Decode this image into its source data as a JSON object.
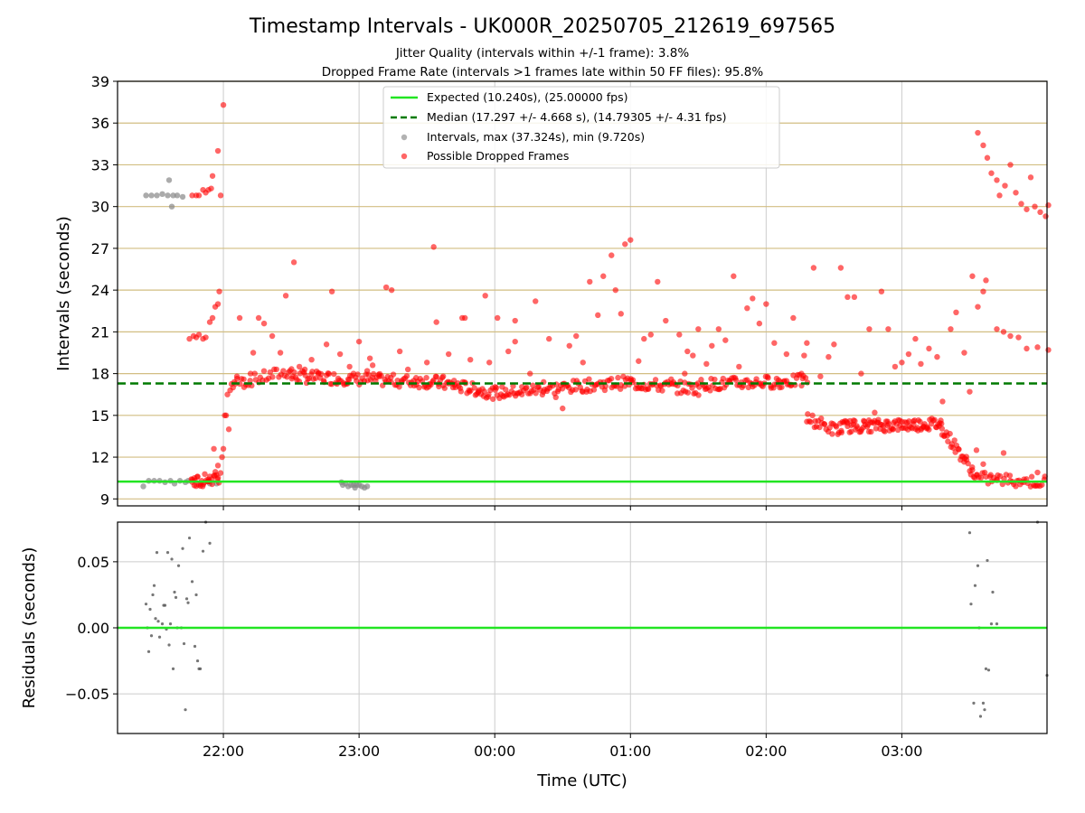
{
  "chart_data": {
    "title": "Timestamp Intervals - UK000R_20250705_212619_697565",
    "subtitle_lines": [
      "Jitter Quality (intervals within +/-1 frame): 3.8%",
      "Dropped Frame Rate (intervals >1 frames late within 50 FF files): 95.8%"
    ],
    "xlabel": "Time (UTC)",
    "x_ticks": [
      "22:00",
      "23:00",
      "00:00",
      "01:00",
      "02:00",
      "03:00"
    ],
    "colors": {
      "expected": "#22e522",
      "median": "#007a00",
      "normal": "#888888",
      "dropped": "#ff0000",
      "grid_h": "#d2be82",
      "grid_v": "#cccccc"
    },
    "top": {
      "type": "scatter",
      "ylabel": "Intervals (seconds)",
      "ylim": [
        8.5,
        39
      ],
      "y_ticks": [
        "9",
        "12",
        "15",
        "18",
        "21",
        "24",
        "27",
        "30",
        "33",
        "36",
        "39"
      ],
      "expected": 10.24,
      "median": 17.297,
      "legend": [
        "Expected (10.240s), (25.00000 fps)",
        "Median (17.297 +/- 4.668 s), (14.79305 +/- 4.31 fps)",
        "Intervals, max (37.324s), min (9.720s)",
        "Possible Dropped Frames"
      ],
      "series": {
        "normal_points": [
          [
            21.41,
            9.9
          ],
          [
            21.43,
            30.8
          ],
          [
            21.45,
            10.3
          ],
          [
            21.47,
            30.8
          ],
          [
            21.49,
            10.3
          ],
          [
            21.51,
            30.8
          ],
          [
            21.53,
            10.3
          ],
          [
            21.55,
            30.9
          ],
          [
            21.57,
            10.2
          ],
          [
            21.59,
            30.8
          ],
          [
            21.6,
            31.9
          ],
          [
            21.61,
            10.3
          ],
          [
            21.62,
            30.0
          ],
          [
            21.63,
            30.8
          ],
          [
            21.64,
            10.1
          ],
          [
            21.66,
            30.8
          ],
          [
            21.68,
            10.3
          ],
          [
            21.7,
            30.7
          ],
          [
            21.72,
            10.2
          ],
          [
            21.74,
            10.3
          ],
          [
            21.9,
            10.1
          ],
          [
            21.95,
            10.1
          ],
          [
            22.87,
            10.2
          ],
          [
            22.88,
            10.0
          ],
          [
            22.9,
            10.1
          ],
          [
            22.92,
            9.9
          ],
          [
            22.94,
            10.0
          ],
          [
            22.96,
            10.0
          ],
          [
            22.97,
            9.8
          ],
          [
            22.98,
            10.0
          ],
          [
            23.0,
            10.0
          ],
          [
            23.02,
            9.9
          ],
          [
            23.04,
            9.8
          ],
          [
            23.06,
            9.9
          ]
        ],
        "dropped_points": [
          [
            21.77,
            30.8
          ],
          [
            21.8,
            30.8
          ],
          [
            21.82,
            30.8
          ],
          [
            21.85,
            31.2
          ],
          [
            21.87,
            31.0
          ],
          [
            21.89,
            31.2
          ],
          [
            21.91,
            31.3
          ],
          [
            21.92,
            32.2
          ],
          [
            21.96,
            34.0
          ],
          [
            21.98,
            30.8
          ],
          [
            22.0,
            37.3
          ],
          [
            21.75,
            20.5
          ],
          [
            21.8,
            20.6
          ],
          [
            21.85,
            20.5
          ],
          [
            21.9,
            21.7
          ],
          [
            21.92,
            22.0
          ],
          [
            21.94,
            22.8
          ],
          [
            21.96,
            23.0
          ],
          [
            21.97,
            23.9
          ],
          [
            21.79,
            10.3
          ],
          [
            21.84,
            10.3
          ],
          [
            21.89,
            10.4
          ],
          [
            21.93,
            12.6
          ],
          [
            21.96,
            11.4
          ],
          [
            21.99,
            12.0
          ],
          [
            22.0,
            12.6
          ],
          [
            22.02,
            15.0
          ],
          [
            22.05,
            16.8
          ],
          [
            22.08,
            17.4
          ],
          [
            22.1,
            17.8
          ],
          [
            22.12,
            22.0
          ],
          [
            22.15,
            17.6
          ],
          [
            22.2,
            18.0
          ],
          [
            22.22,
            19.5
          ],
          [
            22.26,
            22.0
          ],
          [
            22.3,
            21.6
          ],
          [
            22.36,
            20.7
          ],
          [
            22.42,
            19.5
          ],
          [
            22.46,
            23.6
          ],
          [
            22.49,
            18.2
          ],
          [
            22.52,
            26.0
          ],
          [
            22.56,
            18.5
          ],
          [
            22.6,
            18.3
          ],
          [
            22.65,
            19.0
          ],
          [
            22.7,
            18.0
          ],
          [
            22.76,
            20.1
          ],
          [
            22.8,
            23.9
          ],
          [
            22.86,
            19.4
          ],
          [
            22.92,
            17.6
          ],
          [
            23.0,
            20.3
          ],
          [
            23.06,
            18.2
          ],
          [
            23.1,
            18.6
          ],
          [
            23.15,
            17.8
          ],
          [
            23.2,
            24.2
          ],
          [
            23.24,
            24.0
          ],
          [
            23.3,
            19.6
          ],
          [
            23.36,
            18.3
          ],
          [
            23.42,
            17.7
          ],
          [
            23.5,
            18.8
          ],
          [
            23.55,
            27.1
          ],
          [
            23.57,
            21.7
          ],
          [
            23.62,
            17.8
          ],
          [
            23.66,
            19.4
          ],
          [
            23.7,
            17.5
          ],
          [
            23.76,
            22.0
          ],
          [
            23.82,
            19.0
          ],
          [
            23.88,
            16.7
          ],
          [
            23.93,
            23.6
          ],
          [
            23.96,
            18.8
          ],
          [
            24.02,
            22.0
          ],
          [
            24.06,
            16.4
          ],
          [
            24.1,
            19.6
          ],
          [
            24.15,
            21.8
          ],
          [
            24.2,
            16.5
          ],
          [
            24.26,
            18.0
          ],
          [
            24.3,
            23.2
          ],
          [
            24.36,
            17.4
          ],
          [
            24.4,
            20.5
          ],
          [
            24.45,
            16.3
          ],
          [
            24.5,
            15.5
          ],
          [
            24.55,
            20.0
          ],
          [
            24.6,
            20.7
          ],
          [
            24.65,
            18.8
          ],
          [
            24.7,
            24.6
          ],
          [
            24.76,
            22.2
          ],
          [
            24.8,
            25.0
          ],
          [
            24.86,
            26.5
          ],
          [
            24.89,
            24.0
          ],
          [
            24.93,
            22.3
          ],
          [
            24.96,
            27.3
          ],
          [
            25.0,
            27.6
          ],
          [
            25.06,
            18.9
          ],
          [
            25.1,
            20.5
          ],
          [
            25.15,
            20.8
          ],
          [
            25.2,
            24.6
          ],
          [
            25.26,
            21.8
          ],
          [
            25.3,
            17.6
          ],
          [
            25.36,
            20.8
          ],
          [
            25.4,
            18.0
          ],
          [
            25.46,
            19.3
          ],
          [
            25.5,
            21.2
          ],
          [
            25.56,
            18.7
          ],
          [
            25.6,
            20.0
          ],
          [
            25.65,
            21.2
          ],
          [
            25.7,
            20.4
          ],
          [
            25.76,
            25.0
          ],
          [
            25.8,
            18.5
          ],
          [
            25.86,
            22.7
          ],
          [
            25.9,
            23.4
          ],
          [
            25.95,
            21.6
          ],
          [
            26.0,
            23.0
          ],
          [
            26.06,
            20.2
          ],
          [
            26.1,
            17.0
          ],
          [
            26.15,
            19.4
          ],
          [
            26.2,
            22.0
          ],
          [
            26.26,
            18.0
          ],
          [
            26.3,
            20.2
          ],
          [
            26.35,
            25.6
          ],
          [
            26.4,
            17.8
          ],
          [
            26.46,
            19.2
          ],
          [
            26.5,
            20.1
          ],
          [
            26.55,
            25.6
          ],
          [
            26.6,
            23.5
          ],
          [
            26.65,
            23.5
          ],
          [
            26.7,
            18.0
          ],
          [
            26.76,
            21.2
          ],
          [
            26.8,
            15.2
          ],
          [
            26.85,
            23.9
          ],
          [
            26.9,
            21.2
          ],
          [
            26.95,
            18.5
          ],
          [
            27.0,
            18.8
          ],
          [
            27.05,
            19.4
          ],
          [
            27.1,
            20.5
          ],
          [
            27.14,
            18.7
          ],
          [
            27.2,
            19.8
          ],
          [
            27.26,
            19.2
          ],
          [
            27.3,
            16.0
          ],
          [
            27.36,
            21.2
          ],
          [
            27.4,
            22.4
          ],
          [
            27.46,
            19.5
          ],
          [
            27.5,
            16.7
          ],
          [
            27.52,
            25.0
          ],
          [
            27.56,
            22.8
          ],
          [
            27.6,
            23.9
          ],
          [
            27.62,
            24.7
          ],
          [
            27.56,
            35.3
          ],
          [
            27.6,
            34.4
          ],
          [
            27.63,
            33.5
          ],
          [
            27.66,
            32.4
          ],
          [
            27.7,
            31.9
          ],
          [
            27.72,
            30.8
          ],
          [
            27.76,
            31.5
          ],
          [
            27.8,
            33.0
          ],
          [
            27.84,
            31.0
          ],
          [
            27.88,
            30.2
          ],
          [
            27.92,
            29.8
          ],
          [
            27.95,
            32.1
          ],
          [
            27.98,
            30.0
          ],
          [
            28.02,
            29.6
          ],
          [
            28.06,
            29.3
          ],
          [
            28.08,
            30.1
          ],
          [
            27.7,
            21.2
          ],
          [
            27.75,
            21.0
          ],
          [
            27.8,
            20.7
          ],
          [
            27.86,
            20.6
          ],
          [
            27.92,
            19.8
          ],
          [
            28.0,
            19.9
          ],
          [
            28.08,
            19.7
          ],
          [
            27.55,
            12.5
          ],
          [
            27.6,
            11.5
          ],
          [
            27.65,
            10.6
          ],
          [
            27.7,
            10.4
          ],
          [
            27.75,
            12.3
          ],
          [
            27.8,
            10.3
          ],
          [
            27.85,
            10.3
          ],
          [
            27.9,
            10.2
          ],
          [
            27.97,
            10.0
          ],
          [
            28.0,
            10.9
          ],
          [
            28.05,
            10.4
          ],
          [
            21.78,
            20.7
          ],
          [
            21.82,
            20.8
          ],
          [
            21.87,
            20.6
          ],
          [
            22.03,
            16.5
          ],
          [
            22.04,
            14.0
          ],
          [
            22.01,
            15.0
          ],
          [
            23.08,
            19.1
          ],
          [
            22.93,
            18.5
          ],
          [
            23.78,
            22.0
          ],
          [
            24.15,
            20.3
          ],
          [
            25.42,
            19.6
          ],
          [
            26.28,
            19.3
          ]
        ],
        "bands": [
          {
            "x0": 22.06,
            "x1": 22.5,
            "y0": 17.2,
            "y1": 18.2,
            "n": 30
          },
          {
            "x0": 22.5,
            "x1": 23.5,
            "y0": 17.8,
            "y1": 17.4,
            "n": 90
          },
          {
            "x0": 23.5,
            "x1": 24.0,
            "y0": 17.5,
            "y1": 16.6,
            "n": 50
          },
          {
            "x0": 24.0,
            "x1": 25.0,
            "y0": 16.6,
            "y1": 17.4,
            "n": 90
          },
          {
            "x0": 25.0,
            "x1": 25.5,
            "y0": 17.3,
            "y1": 16.9,
            "n": 45
          },
          {
            "x0": 25.5,
            "x1": 26.3,
            "y0": 17.2,
            "y1": 17.5,
            "n": 75
          },
          {
            "x0": 26.3,
            "x1": 26.55,
            "y0": 14.8,
            "y1": 13.8,
            "n": 25
          },
          {
            "x0": 26.55,
            "x1": 27.3,
            "y0": 14.2,
            "y1": 14.4,
            "n": 100
          },
          {
            "x0": 27.3,
            "x1": 27.55,
            "y0": 14.0,
            "y1": 10.6,
            "n": 30
          },
          {
            "x0": 27.55,
            "x1": 28.05,
            "y0": 10.5,
            "y1": 10.2,
            "n": 35
          },
          {
            "x0": 21.76,
            "x1": 21.98,
            "y0": 10.2,
            "y1": 10.6,
            "n": 30
          }
        ]
      }
    },
    "bottom": {
      "type": "scatter",
      "ylabel": "Residuals (seconds)",
      "ylim": [
        -0.08,
        0.08
      ],
      "y_ticks": [
        "−0.05",
        "0.00",
        "0.05"
      ],
      "y_tick_values": [
        -0.05,
        0.0,
        0.05
      ],
      "points": [
        [
          21.43,
          0.018
        ],
        [
          21.44,
          0.0
        ],
        [
          21.45,
          -0.018
        ],
        [
          21.46,
          0.014
        ],
        [
          21.47,
          -0.006
        ],
        [
          21.48,
          0.025
        ],
        [
          21.49,
          0.032
        ],
        [
          21.5,
          0.007
        ],
        [
          21.51,
          0.057
        ],
        [
          21.52,
          0.005
        ],
        [
          21.53,
          -0.007
        ],
        [
          21.55,
          0.003
        ],
        [
          21.56,
          0.017
        ],
        [
          21.57,
          0.017
        ],
        [
          21.58,
          -0.001
        ],
        [
          21.59,
          0.057
        ],
        [
          21.6,
          -0.013
        ],
        [
          21.61,
          0.003
        ],
        [
          21.62,
          0.052
        ],
        [
          21.63,
          -0.031
        ],
        [
          21.64,
          0.027
        ],
        [
          21.65,
          0.023
        ],
        [
          21.66,
          0.0
        ],
        [
          21.67,
          0.047
        ],
        [
          21.69,
          0.0
        ],
        [
          21.7,
          0.06
        ],
        [
          21.71,
          -0.012
        ],
        [
          21.72,
          -0.062
        ],
        [
          21.73,
          0.022
        ],
        [
          21.74,
          0.019
        ],
        [
          21.75,
          0.068
        ],
        [
          21.77,
          0.035
        ],
        [
          21.79,
          -0.014
        ],
        [
          21.8,
          0.025
        ],
        [
          21.81,
          -0.025
        ],
        [
          21.82,
          -0.031
        ],
        [
          21.83,
          -0.031
        ],
        [
          21.85,
          0.058
        ],
        [
          21.87,
          0.08
        ],
        [
          21.9,
          0.064
        ],
        [
          27.5,
          0.072
        ],
        [
          27.51,
          0.018
        ],
        [
          27.53,
          -0.057
        ],
        [
          27.54,
          0.032
        ],
        [
          27.56,
          0.047
        ],
        [
          27.57,
          0.0
        ],
        [
          27.58,
          -0.067
        ],
        [
          27.6,
          -0.057
        ],
        [
          27.61,
          -0.062
        ],
        [
          27.62,
          -0.031
        ],
        [
          27.63,
          0.051
        ],
        [
          27.64,
          -0.032
        ],
        [
          27.66,
          0.003
        ],
        [
          27.67,
          0.027
        ],
        [
          27.7,
          0.003
        ],
        [
          28.0,
          0.08
        ],
        [
          28.07,
          -0.036
        ]
      ]
    }
  }
}
